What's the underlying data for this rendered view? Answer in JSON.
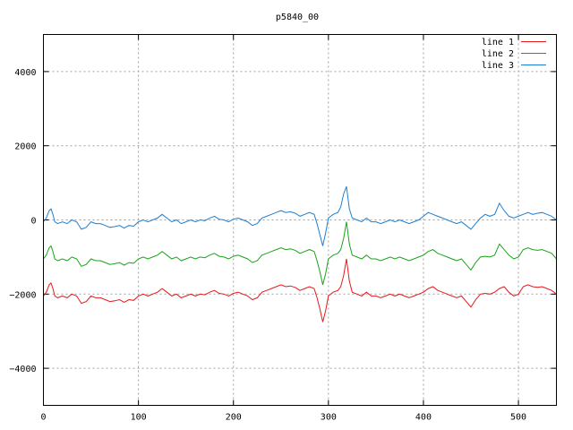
{
  "chart_data": {
    "type": "line",
    "title": "p5840_00",
    "xlabel": "",
    "ylabel": "",
    "xlim": [
      0,
      540
    ],
    "ylim": [
      -5000,
      5000
    ],
    "xticks": [
      0,
      100,
      200,
      300,
      400,
      500
    ],
    "yticks": [
      -4000,
      -2000,
      0,
      2000,
      4000
    ],
    "grid": true,
    "legend_position": "top-right",
    "series": [
      {
        "name": "line 1",
        "color": "#e41a1c",
        "x": [
          0,
          3,
          6,
          8,
          10,
          12,
          15,
          20,
          25,
          30,
          35,
          40,
          45,
          50,
          55,
          60,
          65,
          70,
          75,
          80,
          85,
          90,
          95,
          100,
          105,
          110,
          115,
          120,
          125,
          130,
          135,
          140,
          145,
          150,
          155,
          160,
          165,
          170,
          175,
          180,
          185,
          190,
          195,
          200,
          205,
          210,
          215,
          220,
          225,
          230,
          235,
          240,
          245,
          250,
          255,
          260,
          265,
          270,
          275,
          280,
          285,
          288,
          291,
          294,
          297,
          300,
          305,
          310,
          313,
          316,
          319,
          322,
          325,
          330,
          335,
          340,
          345,
          350,
          355,
          360,
          365,
          370,
          375,
          380,
          385,
          390,
          395,
          400,
          405,
          410,
          415,
          420,
          425,
          430,
          435,
          440,
          445,
          450,
          455,
          460,
          465,
          470,
          475,
          480,
          485,
          490,
          495,
          500,
          505,
          510,
          515,
          520,
          525,
          530,
          535,
          540
        ],
        "y": [
          -2050,
          -1950,
          -1750,
          -1700,
          -1850,
          -2050,
          -2100,
          -2050,
          -2100,
          -2000,
          -2050,
          -2250,
          -2200,
          -2050,
          -2100,
          -2100,
          -2150,
          -2200,
          -2180,
          -2150,
          -2220,
          -2150,
          -2170,
          -2050,
          -2000,
          -2050,
          -2000,
          -1950,
          -1850,
          -1950,
          -2050,
          -2000,
          -2100,
          -2050,
          -2000,
          -2050,
          -2000,
          -2020,
          -1950,
          -1900,
          -1980,
          -2000,
          -2050,
          -1980,
          -1950,
          -2000,
          -2050,
          -2150,
          -2100,
          -1950,
          -1900,
          -1850,
          -1800,
          -1750,
          -1800,
          -1780,
          -1820,
          -1900,
          -1850,
          -1800,
          -1850,
          -2100,
          -2400,
          -2750,
          -2450,
          -2050,
          -1950,
          -1900,
          -1800,
          -1500,
          -1050,
          -1650,
          -1950,
          -2000,
          -2050,
          -1950,
          -2050,
          -2050,
          -2100,
          -2050,
          -2000,
          -2050,
          -2000,
          -2050,
          -2100,
          -2050,
          -2000,
          -1950,
          -1850,
          -1800,
          -1900,
          -1950,
          -2000,
          -2050,
          -2100,
          -2050,
          -2200,
          -2350,
          -2150,
          -2000,
          -1980,
          -2000,
          -1950,
          -1850,
          -1800,
          -1950,
          -2050,
          -2000,
          -1800,
          -1750,
          -1800,
          -1820,
          -1800,
          -1850,
          -1900,
          -2000
        ]
      },
      {
        "name": "line 2",
        "color": "#1aa31a",
        "x": [
          0,
          3,
          6,
          8,
          10,
          12,
          15,
          20,
          25,
          30,
          35,
          40,
          45,
          50,
          55,
          60,
          65,
          70,
          75,
          80,
          85,
          90,
          95,
          100,
          105,
          110,
          115,
          120,
          125,
          130,
          135,
          140,
          145,
          150,
          155,
          160,
          165,
          170,
          175,
          180,
          185,
          190,
          195,
          200,
          205,
          210,
          215,
          220,
          225,
          230,
          235,
          240,
          245,
          250,
          255,
          260,
          265,
          270,
          275,
          280,
          285,
          288,
          291,
          294,
          297,
          300,
          305,
          310,
          313,
          316,
          319,
          322,
          325,
          330,
          335,
          340,
          345,
          350,
          355,
          360,
          365,
          370,
          375,
          380,
          385,
          390,
          395,
          400,
          405,
          410,
          415,
          420,
          425,
          430,
          435,
          440,
          445,
          450,
          455,
          460,
          465,
          470,
          475,
          480,
          485,
          490,
          495,
          500,
          505,
          510,
          515,
          520,
          525,
          530,
          535,
          540
        ],
        "y": [
          -1050,
          -950,
          -750,
          -700,
          -850,
          -1050,
          -1100,
          -1050,
          -1100,
          -1000,
          -1050,
          -1250,
          -1200,
          -1050,
          -1100,
          -1100,
          -1150,
          -1200,
          -1180,
          -1150,
          -1220,
          -1150,
          -1170,
          -1050,
          -1000,
          -1050,
          -1000,
          -950,
          -850,
          -950,
          -1050,
          -1000,
          -1100,
          -1050,
          -1000,
          -1050,
          -1000,
          -1020,
          -950,
          -900,
          -980,
          -1000,
          -1050,
          -980,
          -950,
          -1000,
          -1050,
          -1150,
          -1100,
          -950,
          -900,
          -850,
          -800,
          -750,
          -800,
          -780,
          -820,
          -900,
          -850,
          -800,
          -850,
          -1100,
          -1400,
          -1750,
          -1450,
          -1050,
          -950,
          -900,
          -800,
          -500,
          -50,
          -650,
          -950,
          -1000,
          -1050,
          -950,
          -1050,
          -1050,
          -1100,
          -1050,
          -1000,
          -1050,
          -1000,
          -1050,
          -1100,
          -1050,
          -1000,
          -950,
          -850,
          -800,
          -900,
          -950,
          -1000,
          -1050,
          -1100,
          -1050,
          -1200,
          -1350,
          -1150,
          -1000,
          -980,
          -1000,
          -950,
          -650,
          -800,
          -950,
          -1050,
          -1000,
          -800,
          -750,
          -800,
          -820,
          -800,
          -850,
          -900,
          -1050
        ]
      },
      {
        "name": "line 3",
        "color": "#1e7fd0",
        "x": [
          0,
          3,
          6,
          8,
          10,
          12,
          15,
          20,
          25,
          30,
          35,
          40,
          45,
          50,
          55,
          60,
          65,
          70,
          75,
          80,
          85,
          90,
          95,
          100,
          105,
          110,
          115,
          120,
          125,
          130,
          135,
          140,
          145,
          150,
          155,
          160,
          165,
          170,
          175,
          180,
          185,
          190,
          195,
          200,
          205,
          210,
          215,
          220,
          225,
          230,
          235,
          240,
          245,
          250,
          255,
          260,
          265,
          270,
          275,
          280,
          285,
          288,
          291,
          294,
          297,
          300,
          305,
          310,
          313,
          316,
          319,
          322,
          325,
          330,
          335,
          340,
          345,
          350,
          355,
          360,
          365,
          370,
          375,
          380,
          385,
          390,
          395,
          400,
          405,
          410,
          415,
          420,
          425,
          430,
          435,
          440,
          445,
          450,
          455,
          460,
          465,
          470,
          475,
          480,
          485,
          490,
          495,
          500,
          505,
          510,
          515,
          520,
          525,
          530,
          535,
          540
        ],
        "y": [
          -50,
          50,
          250,
          300,
          150,
          -50,
          -100,
          -50,
          -100,
          0,
          -50,
          -250,
          -200,
          -50,
          -100,
          -100,
          -150,
          -200,
          -180,
          -150,
          -220,
          -150,
          -170,
          -50,
          0,
          -50,
          0,
          50,
          150,
          50,
          -50,
          0,
          -100,
          -50,
          0,
          -50,
          0,
          -20,
          50,
          100,
          20,
          0,
          -50,
          20,
          50,
          0,
          -50,
          -150,
          -100,
          50,
          100,
          150,
          200,
          250,
          200,
          220,
          180,
          100,
          150,
          200,
          150,
          -100,
          -400,
          -700,
          -350,
          50,
          150,
          200,
          350,
          700,
          900,
          300,
          50,
          0,
          -50,
          50,
          -50,
          -50,
          -100,
          -50,
          0,
          -50,
          0,
          -50,
          -100,
          -50,
          0,
          100,
          200,
          150,
          100,
          50,
          0,
          -50,
          -100,
          -50,
          -150,
          -250,
          -100,
          50,
          150,
          100,
          150,
          450,
          250,
          100,
          50,
          100,
          150,
          200,
          150,
          180,
          200,
          150,
          100,
          0
        ]
      }
    ]
  }
}
